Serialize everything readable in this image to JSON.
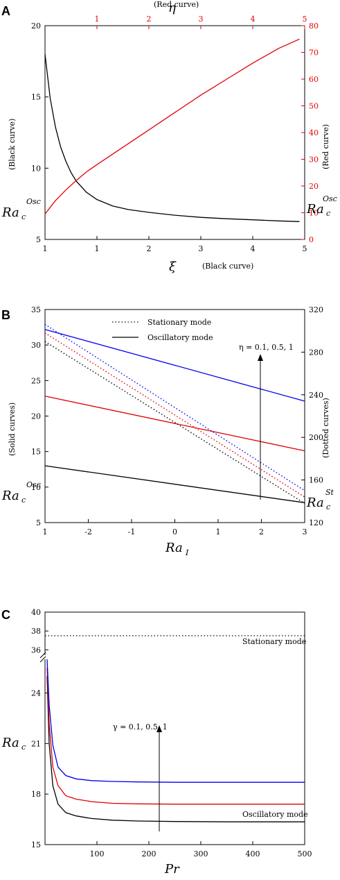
{
  "chart_data": [
    {
      "panel": "A",
      "type": "line",
      "x_bottom": {
        "label": "ξ",
        "note": "(Black curve)",
        "ticks": [
          "1",
          "1",
          "2",
          "3",
          "4",
          "5"
        ]
      },
      "x_top": {
        "label": "η",
        "note": "(Red curve)",
        "ticks": [
          "1",
          "2",
          "3",
          "4",
          "5"
        ]
      },
      "y_left": {
        "label_main": "Ra",
        "label_sub": "c",
        "label_sup": "Osc",
        "note": "(Black curve)",
        "ticks": [
          "5",
          "10",
          "15",
          "20"
        ],
        "ylim": [
          5,
          20
        ]
      },
      "y_right": {
        "label_main": "Ra",
        "label_sub": "c",
        "label_sup": "Osc",
        "note": "(Red curve)",
        "ticks": [
          "0",
          "10",
          "20",
          "30",
          "40",
          "50",
          "60",
          "70",
          "80"
        ],
        "ylim": [
          0,
          80
        ]
      },
      "series": [
        {
          "color": "#000000",
          "axis": "left",
          "x": [
            0.0,
            0.1,
            0.2,
            0.3,
            0.4,
            0.5,
            0.6,
            0.8,
            1.0,
            1.3,
            1.6,
            2.0,
            2.5,
            3.0,
            3.5,
            4.0,
            4.5,
            4.9
          ],
          "y": [
            18.0,
            14.9,
            12.9,
            11.5,
            10.5,
            9.7,
            9.1,
            8.3,
            7.8,
            7.35,
            7.1,
            6.9,
            6.7,
            6.55,
            6.45,
            6.38,
            6.3,
            6.25
          ]
        },
        {
          "color": "#e00000",
          "axis": "right",
          "x": [
            0.0,
            0.2,
            0.4,
            0.6,
            0.8,
            1.0,
            1.5,
            2.0,
            2.5,
            3.0,
            3.5,
            4.0,
            4.5,
            4.9
          ],
          "y": [
            9.5,
            14.5,
            18.5,
            22.0,
            25.3,
            28.0,
            34.5,
            41.0,
            47.5,
            54.0,
            60.0,
            66.0,
            71.5,
            75.0
          ]
        }
      ]
    },
    {
      "panel": "B",
      "type": "line",
      "x": {
        "label_main": "Ra",
        "label_sub": "I",
        "ticks": [
          "1",
          "-2",
          "-1",
          "0",
          "1",
          "2",
          "3"
        ],
        "xlim": [
          -3,
          3
        ]
      },
      "y_left": {
        "label_main": "Ra",
        "label_sub": "c",
        "label_sup": "Osc",
        "note": "(Solid curves)",
        "ticks": [
          "5",
          "10",
          "15",
          "20",
          "25",
          "30",
          "35"
        ],
        "ylim": [
          5,
          35
        ]
      },
      "y_right": {
        "label_main": "Ra",
        "label_sub": "c",
        "label_sup": "St",
        "note": "(Dotted curves)",
        "ticks": [
          "120",
          "160",
          "200",
          "240",
          "280",
          "320"
        ],
        "ylim": [
          120,
          320
        ]
      },
      "legend": {
        "position": "top-center",
        "entries": [
          {
            "label": "Stationary mode",
            "style": "dotted"
          },
          {
            "label": "Oscillatory mode",
            "style": "solid"
          }
        ]
      },
      "annotation": "η = 0.1, 0.5, 1",
      "series": [
        {
          "style": "solid",
          "color": "#000000",
          "axis": "left",
          "x": [
            -3,
            3
          ],
          "y": [
            13.0,
            7.8
          ]
        },
        {
          "style": "solid",
          "color": "#e00000",
          "axis": "left",
          "x": [
            -3,
            3
          ],
          "y": [
            22.8,
            15.1
          ]
        },
        {
          "style": "solid",
          "color": "#0000ee",
          "axis": "left",
          "x": [
            -3,
            3
          ],
          "y": [
            32.2,
            22.1
          ]
        },
        {
          "style": "dotted",
          "color": "#000000",
          "axis": "right",
          "x": [
            -3,
            3
          ],
          "y": [
            290,
            138
          ]
        },
        {
          "style": "dotted",
          "color": "#e00000",
          "axis": "right",
          "x": [
            -3,
            3
          ],
          "y": [
            298,
            144
          ]
        },
        {
          "style": "dotted",
          "color": "#0000ee",
          "axis": "right",
          "x": [
            -3,
            3
          ],
          "y": [
            306,
            150
          ]
        }
      ]
    },
    {
      "panel": "C",
      "type": "line",
      "x": {
        "label": "Pr",
        "ticks": [
          "100",
          "200",
          "300",
          "400",
          "500"
        ],
        "xlim": [
          0,
          500
        ]
      },
      "y": {
        "label_main": "Ra",
        "label_sub": "c",
        "ticks_lower": [
          "15",
          "18",
          "21",
          "24"
        ],
        "ticks_upper": [
          "36",
          "38",
          "40"
        ],
        "axis_break": true
      },
      "annotation": "γ = 0.1, 0.5, 1",
      "mode_labels": [
        "Stationary mode",
        "Oscillatory mode"
      ],
      "series": [
        {
          "style": "dotted",
          "color": "#000000",
          "x": [
            0,
            500
          ],
          "y": [
            37.5,
            37.5
          ]
        },
        {
          "style": "solid",
          "color": "#000000",
          "x": [
            4,
            8,
            15,
            25,
            40,
            60,
            90,
            130,
            180,
            250,
            350,
            500
          ],
          "y": [
            25.0,
            21.0,
            18.5,
            17.4,
            16.9,
            16.7,
            16.55,
            16.45,
            16.4,
            16.37,
            16.35,
            16.35
          ]
        },
        {
          "style": "solid",
          "color": "#e00000",
          "x": [
            4,
            8,
            15,
            25,
            40,
            60,
            90,
            130,
            180,
            250,
            350,
            500
          ],
          "y": [
            25.5,
            22.2,
            19.6,
            18.5,
            17.9,
            17.7,
            17.55,
            17.45,
            17.42,
            17.4,
            17.4,
            17.4
          ]
        },
        {
          "style": "solid",
          "color": "#0000ee",
          "x": [
            4,
            8,
            15,
            25,
            40,
            60,
            90,
            130,
            180,
            250,
            350,
            500
          ],
          "y": [
            26.0,
            23.3,
            20.9,
            19.6,
            19.1,
            18.9,
            18.8,
            18.75,
            18.72,
            18.7,
            18.7,
            18.7
          ]
        }
      ]
    }
  ]
}
